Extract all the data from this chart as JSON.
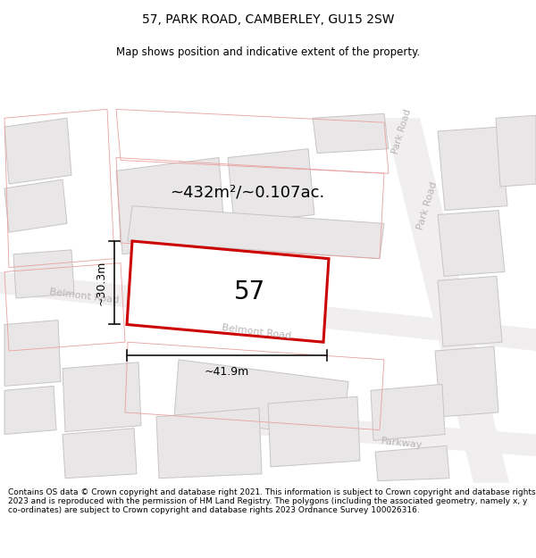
{
  "title": "57, PARK ROAD, CAMBERLEY, GU15 2SW",
  "subtitle": "Map shows position and indicative extent of the property.",
  "footer": "Contains OS data © Crown copyright and database right 2021. This information is subject to Crown copyright and database rights 2023 and is reproduced with the permission of HM Land Registry. The polygons (including the associated geometry, namely x, y co-ordinates) are subject to Crown copyright and database rights 2023 Ordnance Survey 100026316.",
  "area_label": "~432m²/~0.107ac.",
  "plot_number": "57",
  "width_label": "~41.9m",
  "height_label": "~30.3m",
  "map_bg": "#f7f6f6",
  "building_fill": "#e8e6e6",
  "building_edge": "#c8c4c4",
  "plot_edge_color": "#e8a0a0",
  "road_label_color": "#b8b4b4",
  "plot_fill": "#ffffff",
  "plot_red": "#cc0000",
  "dim_color": "#111111",
  "title_fontsize": 10,
  "subtitle_fontsize": 8.5,
  "footer_fontsize": 6.5,
  "area_fontsize": 13,
  "plot_num_fontsize": 20,
  "road_label_fontsize": 8,
  "dim_fontsize": 9
}
